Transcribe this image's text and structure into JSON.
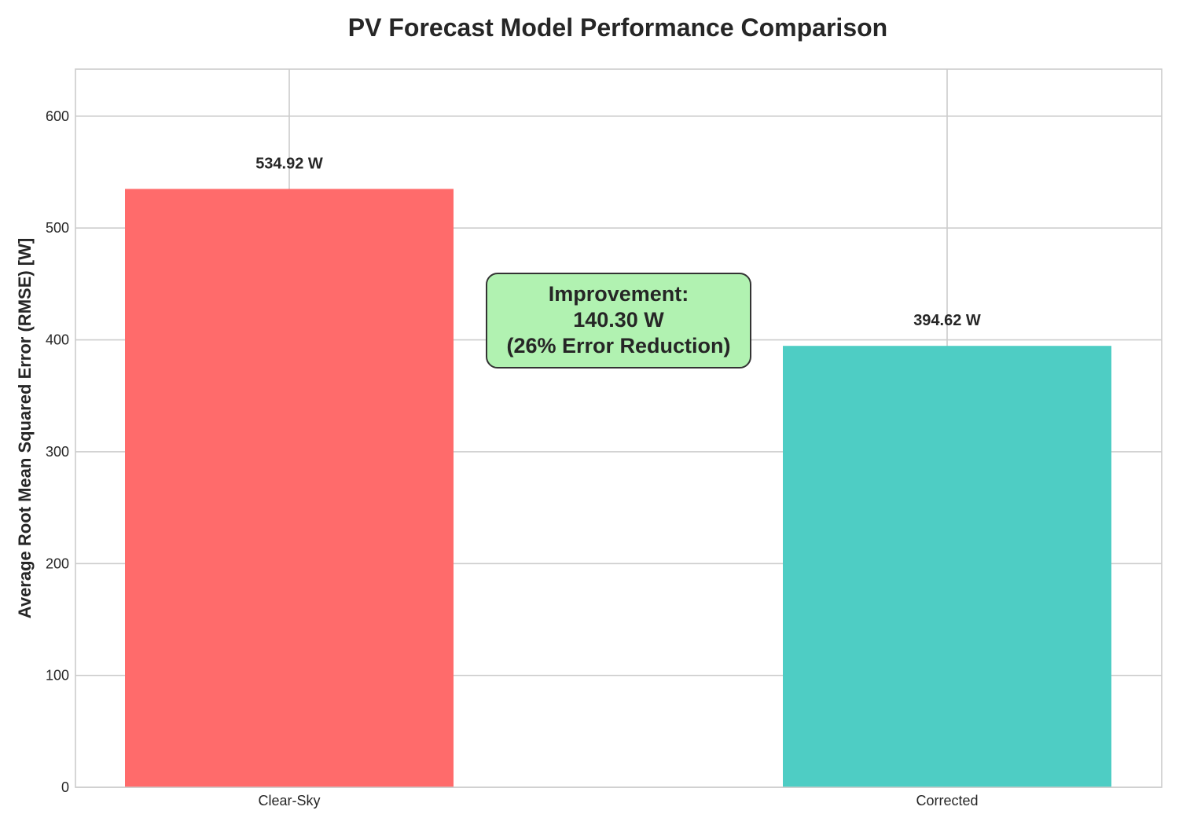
{
  "chart_data": {
    "type": "bar",
    "title": "PV Forecast Model Performance Comparison",
    "xlabel": "",
    "ylabel": "Average Root Mean Squared Error (RMSE) [W]",
    "categories": [
      "Clear-Sky",
      "Corrected"
    ],
    "values": [
      534.92,
      394.62
    ],
    "value_labels": [
      "534.92 W",
      "394.62 W"
    ],
    "colors": [
      "#ff6b6b",
      "#4ecdc4"
    ],
    "ylim": [
      0,
      642
    ],
    "yticks": [
      0,
      100,
      200,
      300,
      400,
      500,
      600
    ],
    "grid": true,
    "annotation": {
      "lines": [
        "Improvement:",
        "140.30 W",
        "(26% Error Reduction)"
      ],
      "background": "#b1f2b1",
      "border": "#333333"
    }
  }
}
